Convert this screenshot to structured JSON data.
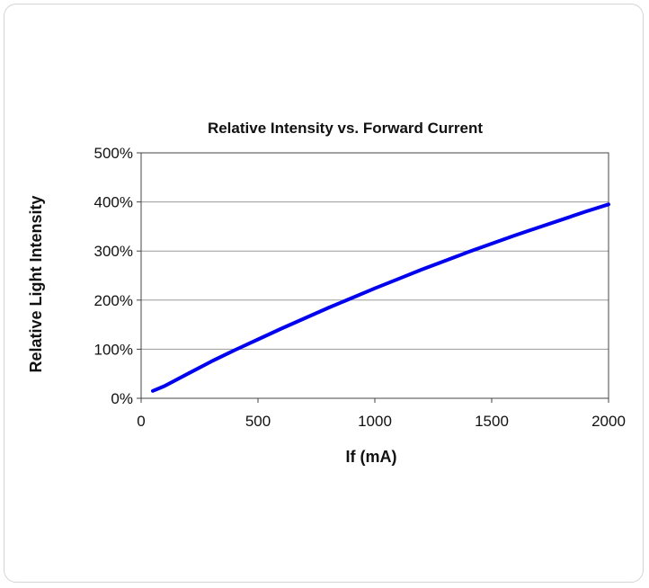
{
  "chart_data": {
    "type": "line",
    "title": "Relative Intensity vs. Forward Current",
    "xlabel": "If (mA)",
    "ylabel": "Relative Light Intensity",
    "xlim": [
      0,
      2000
    ],
    "ylim": [
      0,
      5
    ],
    "x_ticks": [
      "0",
      "500",
      "1000",
      "1500",
      "2000"
    ],
    "y_ticks": [
      "0%",
      "100%",
      "200%",
      "300%",
      "400%",
      "500%"
    ],
    "grid": "horizontal",
    "series": [
      {
        "color": "#0000ee",
        "x": [
          50,
          100,
          200,
          300,
          400,
          500,
          600,
          700,
          800,
          900,
          1000,
          1100,
          1200,
          1300,
          1400,
          1500,
          1600,
          1700,
          1800,
          1900,
          2000
        ],
        "y": [
          0.15,
          0.25,
          0.5,
          0.75,
          0.98,
          1.2,
          1.42,
          1.63,
          1.84,
          2.04,
          2.24,
          2.43,
          2.62,
          2.8,
          2.98,
          3.15,
          3.32,
          3.48,
          3.64,
          3.8,
          3.95
        ]
      }
    ]
  }
}
